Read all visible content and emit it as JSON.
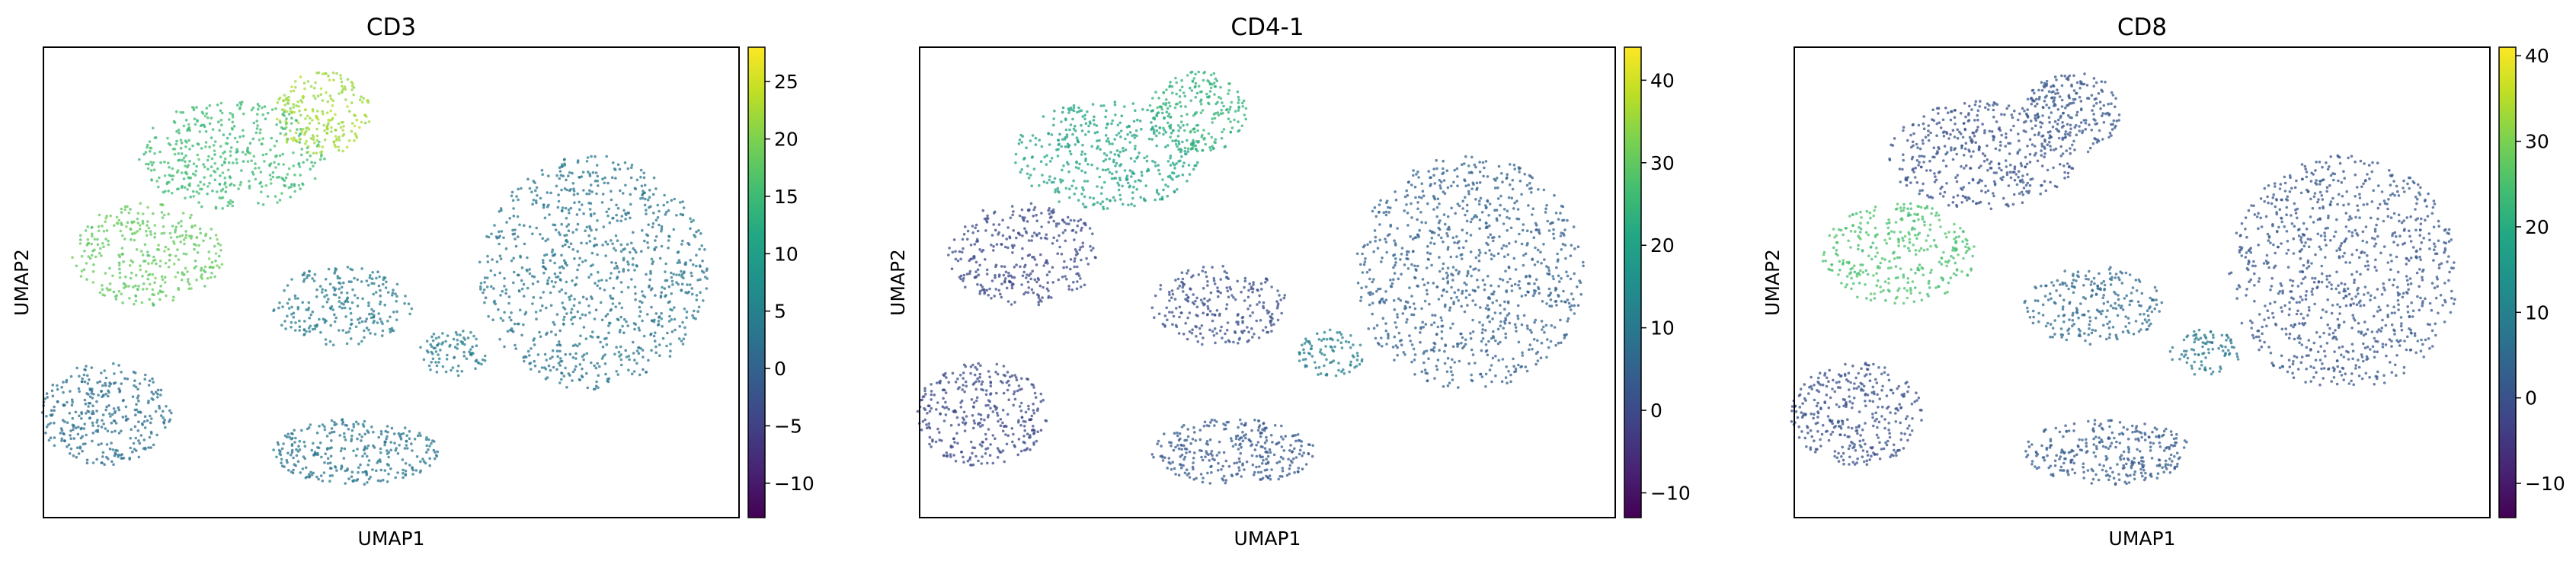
{
  "chart_data": [
    {
      "type": "scatter",
      "title": "CD3",
      "xlabel": "UMAP1",
      "ylabel": "UMAP2",
      "colormap": "viridis",
      "colorbar": {
        "range": [
          -13,
          28
        ],
        "ticks": [
          -10,
          -5,
          0,
          5,
          10,
          15,
          20,
          25
        ],
        "tick_labels": [
          "−10",
          "−5",
          "0",
          "5",
          "10",
          "15",
          "20",
          "25"
        ]
      },
      "clusters": [
        {
          "region": "top-left lobe (upper)",
          "level": 15
        },
        {
          "region": "top-left lobe (right tip)",
          "level": 22
        },
        {
          "region": "left band",
          "level": 18
        },
        {
          "region": "middle-left blob",
          "level": 4
        },
        {
          "region": "large right blob",
          "level": 3
        },
        {
          "region": "bottom-left blob",
          "level": 2
        },
        {
          "region": "bottom-middle blob",
          "level": 3
        },
        {
          "region": "small middle fragments",
          "level": 4
        }
      ]
    },
    {
      "type": "scatter",
      "title": "CD4-1",
      "xlabel": "UMAP1",
      "ylabel": "UMAP2",
      "colormap": "viridis",
      "colorbar": {
        "range": [
          -13,
          44
        ],
        "ticks": [
          -10,
          0,
          10,
          20,
          30,
          40
        ],
        "tick_labels": [
          "−10",
          "0",
          "10",
          "20",
          "30",
          "40"
        ]
      },
      "clusters": [
        {
          "region": "top-left lobe (upper)",
          "level": 20
        },
        {
          "region": "top-left lobe (right tip)",
          "level": 24
        },
        {
          "region": "left band",
          "level": 0
        },
        {
          "region": "middle-left blob",
          "level": 1
        },
        {
          "region": "large right blob",
          "level": 5
        },
        {
          "region": "bottom-left blob",
          "level": 0
        },
        {
          "region": "bottom-middle blob",
          "level": 3
        },
        {
          "region": "small middle fragments",
          "level": 12
        }
      ]
    },
    {
      "type": "scatter",
      "title": "CD8",
      "xlabel": "UMAP1",
      "ylabel": "UMAP2",
      "colormap": "viridis",
      "colorbar": {
        "range": [
          -14,
          41
        ],
        "ticks": [
          -10,
          0,
          10,
          20,
          30,
          40
        ],
        "tick_labels": [
          "−10",
          "0",
          "10",
          "20",
          "30",
          "40"
        ]
      },
      "clusters": [
        {
          "region": "top-left lobe (upper)",
          "level": 0
        },
        {
          "region": "top-left lobe (right tip)",
          "level": 1
        },
        {
          "region": "left band",
          "level": 25
        },
        {
          "region": "middle-left blob",
          "level": 5
        },
        {
          "region": "large right blob",
          "level": 1
        },
        {
          "region": "bottom-left blob",
          "level": 0
        },
        {
          "region": "bottom-middle blob",
          "level": 2
        },
        {
          "region": "small middle fragments",
          "level": 8
        }
      ]
    }
  ]
}
